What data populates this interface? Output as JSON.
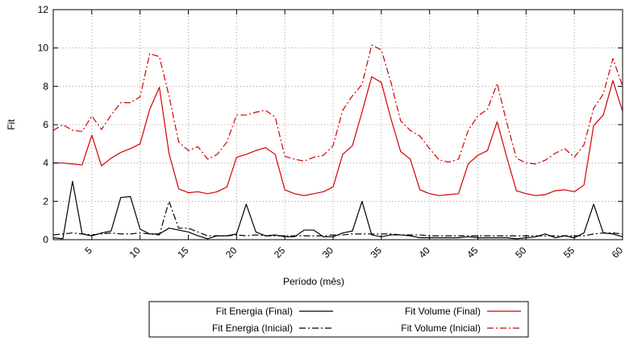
{
  "chart_data": {
    "type": "line",
    "xlabel": "Período (mês)",
    "ylabel": "Fit",
    "xlim": [
      1,
      60
    ],
    "ylim": [
      0,
      12
    ],
    "x_ticks": [
      5,
      10,
      15,
      20,
      25,
      30,
      35,
      40,
      45,
      50,
      55,
      60
    ],
    "y_ticks": [
      0,
      2,
      4,
      6,
      8,
      10,
      12
    ],
    "grid": true,
    "legend_position": "bottom",
    "x": [
      1,
      2,
      3,
      4,
      5,
      6,
      7,
      8,
      9,
      10,
      11,
      12,
      13,
      14,
      15,
      16,
      17,
      18,
      19,
      20,
      21,
      22,
      23,
      24,
      25,
      26,
      27,
      28,
      29,
      30,
      31,
      32,
      33,
      34,
      35,
      36,
      37,
      38,
      39,
      40,
      41,
      42,
      43,
      44,
      45,
      46,
      47,
      48,
      49,
      50,
      51,
      52,
      53,
      54,
      55,
      56,
      57,
      58,
      59,
      60
    ],
    "series": [
      {
        "name": "Fit Energia (Final)",
        "color": "#000000",
        "dash": "solid",
        "values": [
          0.1,
          0.05,
          3.05,
          0.3,
          0.2,
          0.35,
          0.45,
          2.2,
          2.25,
          0.55,
          0.3,
          0.3,
          0.6,
          0.5,
          0.4,
          0.2,
          0.05,
          0.2,
          0.2,
          0.3,
          1.85,
          0.4,
          0.2,
          0.25,
          0.15,
          0.15,
          0.5,
          0.5,
          0.15,
          0.15,
          0.35,
          0.45,
          2.0,
          0.25,
          0.15,
          0.25,
          0.25,
          0.2,
          0.1,
          0.1,
          0.1,
          0.1,
          0.1,
          0.15,
          0.1,
          0.1,
          0.1,
          0.1,
          0.05,
          0.1,
          0.15,
          0.3,
          0.1,
          0.2,
          0.1,
          0.35,
          1.85,
          0.35,
          0.3,
          0.15
        ]
      },
      {
        "name": "Fit Energia (Inicial)",
        "color": "#000000",
        "dash": "dashdot",
        "values": [
          0.25,
          0.3,
          0.35,
          0.3,
          0.25,
          0.3,
          0.35,
          0.3,
          0.3,
          0.35,
          0.3,
          0.25,
          2.0,
          0.6,
          0.6,
          0.4,
          0.2,
          0.2,
          0.2,
          0.25,
          0.2,
          0.25,
          0.2,
          0.2,
          0.2,
          0.2,
          0.2,
          0.2,
          0.2,
          0.25,
          0.25,
          0.3,
          0.3,
          0.3,
          0.3,
          0.3,
          0.25,
          0.25,
          0.25,
          0.2,
          0.2,
          0.2,
          0.2,
          0.2,
          0.2,
          0.2,
          0.2,
          0.2,
          0.2,
          0.2,
          0.2,
          0.2,
          0.2,
          0.2,
          0.2,
          0.2,
          0.3,
          0.35,
          0.35,
          0.3
        ]
      },
      {
        "name": "Fit Volume (Final)",
        "color": "#d40000",
        "dash": "solid",
        "values": [
          4.0,
          4.0,
          3.95,
          3.9,
          5.45,
          3.85,
          4.25,
          4.55,
          4.75,
          5.0,
          6.8,
          7.95,
          4.5,
          2.65,
          2.45,
          2.5,
          2.4,
          2.5,
          2.75,
          4.3,
          4.45,
          4.65,
          4.8,
          4.45,
          2.6,
          2.4,
          2.3,
          2.4,
          2.5,
          2.75,
          4.45,
          4.9,
          6.65,
          8.5,
          8.2,
          6.3,
          4.6,
          4.2,
          2.6,
          2.4,
          2.3,
          2.35,
          2.4,
          3.95,
          4.4,
          4.65,
          6.15,
          4.3,
          2.55,
          2.4,
          2.3,
          2.35,
          2.55,
          2.6,
          2.5,
          2.85,
          5.95,
          6.5,
          8.3,
          6.7
        ]
      },
      {
        "name": "Fit Volume (Inicial)",
        "color": "#d40000",
        "dash": "dashdot",
        "values": [
          5.7,
          6.0,
          5.7,
          5.65,
          6.45,
          5.75,
          6.5,
          7.15,
          7.15,
          7.45,
          9.7,
          9.55,
          7.5,
          5.1,
          4.65,
          4.85,
          4.2,
          4.45,
          5.1,
          6.5,
          6.5,
          6.65,
          6.75,
          6.4,
          4.35,
          4.2,
          4.1,
          4.3,
          4.4,
          4.9,
          6.75,
          7.5,
          8.1,
          10.15,
          9.9,
          8.2,
          6.2,
          5.7,
          5.4,
          4.75,
          4.15,
          4.05,
          4.2,
          5.7,
          6.45,
          6.8,
          8.15,
          6.1,
          4.25,
          4.0,
          3.95,
          4.15,
          4.5,
          4.75,
          4.3,
          4.95,
          6.85,
          7.6,
          9.45,
          8.0
        ]
      }
    ]
  }
}
